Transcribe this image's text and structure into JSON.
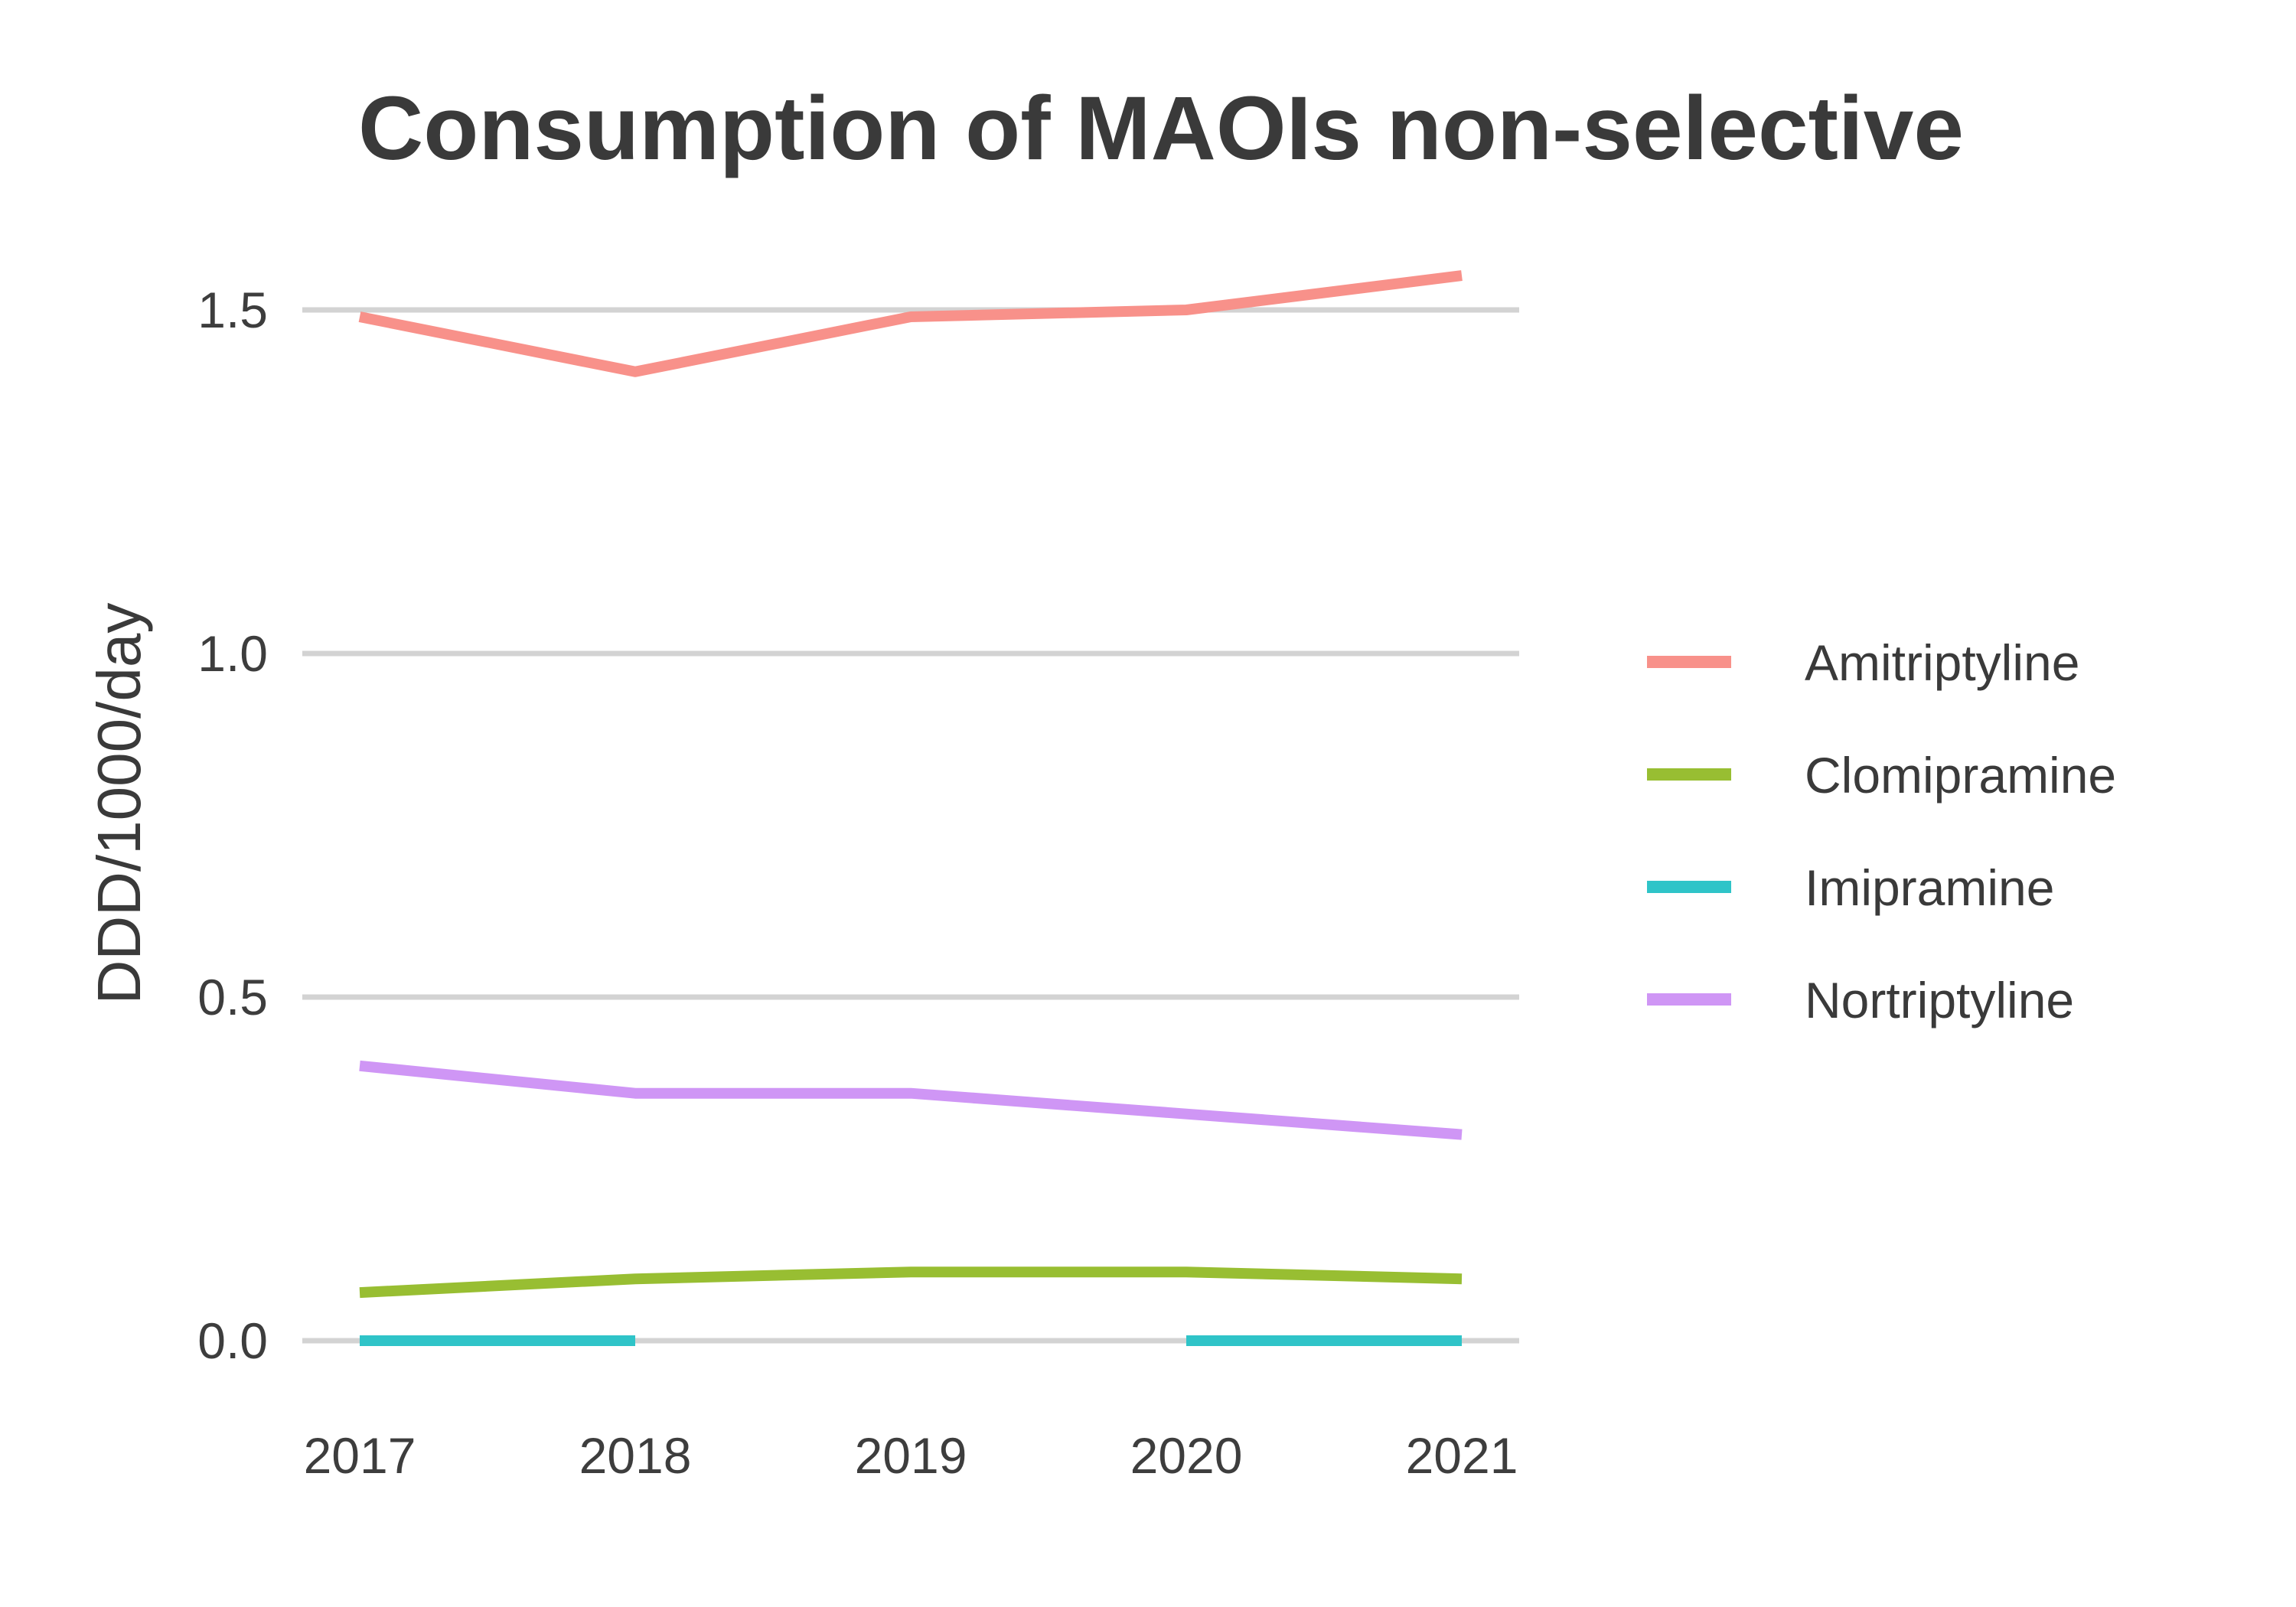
{
  "chart_data": {
    "type": "line",
    "title": "Consumption of MAOIs non-selective",
    "xlabel": "",
    "ylabel": "DDD/1000/day",
    "x": [
      2017,
      2018,
      2019,
      2020,
      2021
    ],
    "x_tick_labels": [
      "2017",
      "2018",
      "2019",
      "2020",
      "2021"
    ],
    "y_ticks": [
      0.0,
      0.5,
      1.0,
      1.5
    ],
    "y_tick_labels": [
      "0.0",
      "0.5",
      "1.0",
      "1.5"
    ],
    "ylim": [
      -0.08,
      1.6
    ],
    "xlim": [
      2016.8,
      2021.2
    ],
    "grid": "horizontal",
    "legend_position": "right",
    "series": [
      {
        "name": "Amitriptyline",
        "color": "#F8918A",
        "values": [
          1.49,
          1.41,
          1.49,
          1.5,
          1.55
        ]
      },
      {
        "name": "Clomipramine",
        "color": "#98BE32",
        "values": [
          0.07,
          0.09,
          0.1,
          0.1,
          0.09
        ]
      },
      {
        "name": "Imipramine",
        "color": "#2FC4C8",
        "values": [
          0.0,
          0.0,
          null,
          0.0,
          0.0
        ]
      },
      {
        "name": "Nortriptyline",
        "color": "#CF96F5",
        "values": [
          0.4,
          0.36,
          0.36,
          0.33,
          0.3
        ]
      }
    ]
  }
}
